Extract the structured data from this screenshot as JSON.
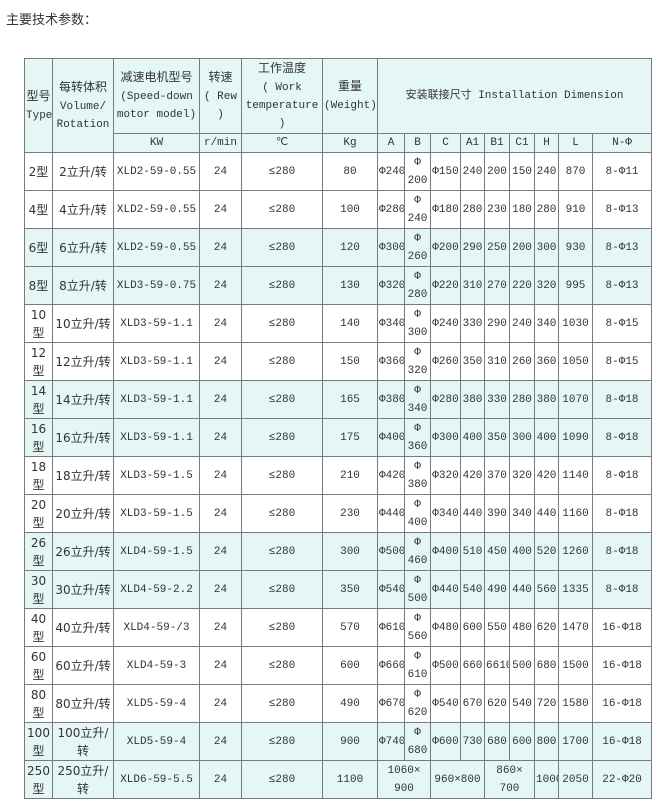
{
  "title": "主要技术参数：",
  "header": {
    "type": {
      "cn": "型号",
      "en": "Type"
    },
    "volume": {
      "cn": "每转体积",
      "en": "Volume/ Rotation"
    },
    "motor": {
      "cn": "减速电机型号",
      "en": "(Speed-down motor model)",
      "unit": "KW"
    },
    "speed": {
      "cn": "转速",
      "en": "( Rew )",
      "unit": "r/min"
    },
    "temp": {
      "cn": "工作温度",
      "en": "( Work temperature )",
      "unit": "℃"
    },
    "weight": {
      "cn": "重量",
      "en": "(Weight)",
      "unit": "Kg"
    },
    "install": {
      "label": "安装联接尺寸 Installation Dimension",
      "cols": [
        "A",
        "B",
        "C",
        "A1",
        "B1",
        "C1",
        "H",
        "L",
        "N-Φ"
      ]
    }
  },
  "rows": [
    {
      "type": "2型",
      "volume": "2立升/转",
      "motor": "XLD2-59-0.55",
      "speed": "24",
      "temp": "≤280",
      "weight": "80",
      "dims": [
        "Φ240",
        "Φ 200",
        "Φ150",
        "240",
        "200",
        "150",
        "240",
        "870",
        "8-Φ11"
      ]
    },
    {
      "type": "4型",
      "volume": "4立升/转",
      "motor": "XLD2-59-0.55",
      "speed": "24",
      "temp": "≤280",
      "weight": "100",
      "dims": [
        "Φ280",
        "Φ 240",
        "Φ180",
        "280",
        "230",
        "180",
        "280",
        "910",
        "8-Φ13"
      ]
    },
    {
      "type": "6型",
      "volume": "6立升/转",
      "motor": "XLD2-59-0.55",
      "speed": "24",
      "temp": "≤280",
      "weight": "120",
      "dims": [
        "Φ300",
        "Φ 260",
        "Φ200",
        "290",
        "250",
        "200",
        "300",
        "930",
        "8-Φ13"
      ]
    },
    {
      "type": "8型",
      "volume": "8立升/转",
      "motor": "XLD3-59-0.75",
      "speed": "24",
      "temp": "≤280",
      "weight": "130",
      "dims": [
        "Φ320",
        "Φ 280",
        "Φ220",
        "310",
        "270",
        "220",
        "320",
        "995",
        "8-Φ13"
      ]
    },
    {
      "type": "10型",
      "volume": "10立升/转",
      "motor": "XLD3-59-1.1",
      "speed": "24",
      "temp": "≤280",
      "weight": "140",
      "dims": [
        "Φ340",
        "Φ 300",
        "Φ240",
        "330",
        "290",
        "240",
        "340",
        "1030",
        "8-Φ15"
      ]
    },
    {
      "type": "12型",
      "volume": "12立升/转",
      "motor": "XLD3-59-1.1",
      "speed": "24",
      "temp": "≤280",
      "weight": "150",
      "dims": [
        "Φ360",
        "Φ 320",
        "Φ260",
        "350",
        "310",
        "260",
        "360",
        "1050",
        "8-Φ15"
      ]
    },
    {
      "type": "14型",
      "volume": "14立升/转",
      "motor": "XLD3-59-1.1",
      "speed": "24",
      "temp": "≤280",
      "weight": "165",
      "dims": [
        "Φ380",
        "Φ 340",
        "Φ280",
        "380",
        "330",
        "280",
        "380",
        "1070",
        "8-Φ18"
      ]
    },
    {
      "type": "16型",
      "volume": "16立升/转",
      "motor": "XLD3-59-1.1",
      "speed": "24",
      "temp": "≤280",
      "weight": "175",
      "dims": [
        "Φ400",
        "Φ 360",
        "Φ300",
        "400",
        "350",
        "300",
        "400",
        "1090",
        "8-Φ18"
      ]
    },
    {
      "type": "18型",
      "volume": "18立升/转",
      "motor": "XLD3-59-1.5",
      "speed": "24",
      "temp": "≤280",
      "weight": "210",
      "dims": [
        "Φ420",
        "Φ 380",
        "Φ320",
        "420",
        "370",
        "320",
        "420",
        "1140",
        "8-Φ18"
      ]
    },
    {
      "type": "20型",
      "volume": "20立升/转",
      "motor": "XLD3-59-1.5",
      "speed": "24",
      "temp": "≤280",
      "weight": "230",
      "dims": [
        "Φ440",
        "Φ 400",
        "Φ340",
        "440",
        "390",
        "340",
        "440",
        "1160",
        "8-Φ18"
      ]
    },
    {
      "type": "26型",
      "volume": "26立升/转",
      "motor": "XLD4-59-1.5",
      "speed": "24",
      "temp": "≤280",
      "weight": "300",
      "dims": [
        "Φ500",
        "Φ 460",
        "Φ400",
        "510",
        "450",
        "400",
        "520",
        "1260",
        "8-Φ18"
      ]
    },
    {
      "type": "30型",
      "volume": "30立升/转",
      "motor": "XLD4-59-2.2",
      "speed": "24",
      "temp": "≤280",
      "weight": "350",
      "dims": [
        "Φ540",
        "Φ 500",
        "Φ440",
        "540",
        "490",
        "440",
        "560",
        "1335",
        "8-Φ18"
      ]
    },
    {
      "type": "40型",
      "volume": "40立升/转",
      "motor": "XLD4-59-/3",
      "speed": "24",
      "temp": "≤280",
      "weight": "570",
      "dims": [
        "Φ610",
        "Φ 560",
        "Φ480",
        "600",
        "550",
        "480",
        "620",
        "1470",
        "16-Φ18"
      ]
    },
    {
      "type": "60型",
      "volume": "60立升/转",
      "motor": "XLD4-59-3",
      "speed": "24",
      "temp": "≤280",
      "weight": "600",
      "dims": [
        "Φ660",
        "Φ 610",
        "Φ500",
        "660",
        "6610",
        "500",
        "680",
        "1500",
        "16-Φ18"
      ]
    },
    {
      "type": "80型",
      "volume": "80立升/转",
      "motor": "XLD5-59-4",
      "speed": "24",
      "temp": "≤280",
      "weight": "490",
      "dims": [
        "Φ670",
        "Φ 620",
        "Φ540",
        "670",
        "620",
        "540",
        "720",
        "1580",
        "16-Φ18"
      ]
    },
    {
      "type": "100型",
      "volume": "100立升/转",
      "motor": "XLD5-59-4",
      "speed": "24",
      "temp": "≤280",
      "weight": "900",
      "dims": [
        "Φ740",
        "Φ 680",
        "Φ600",
        "730",
        "680",
        "600",
        "800",
        "1700",
        "16-Φ18"
      ]
    },
    {
      "type": "250型",
      "volume": "250立升/转",
      "motor": "XLD6-59-5.5",
      "speed": "24",
      "temp": "≤280",
      "weight": "1100",
      "dims": [
        "1060× 900",
        "960×800",
        "860× 700",
        "1000",
        "2050",
        "22-Φ20"
      ]
    }
  ],
  "colors": {
    "header_bg": "#e4f6f6",
    "shaded_row_bg": "#e4f6f6",
    "border": "#7a7a7a"
  }
}
